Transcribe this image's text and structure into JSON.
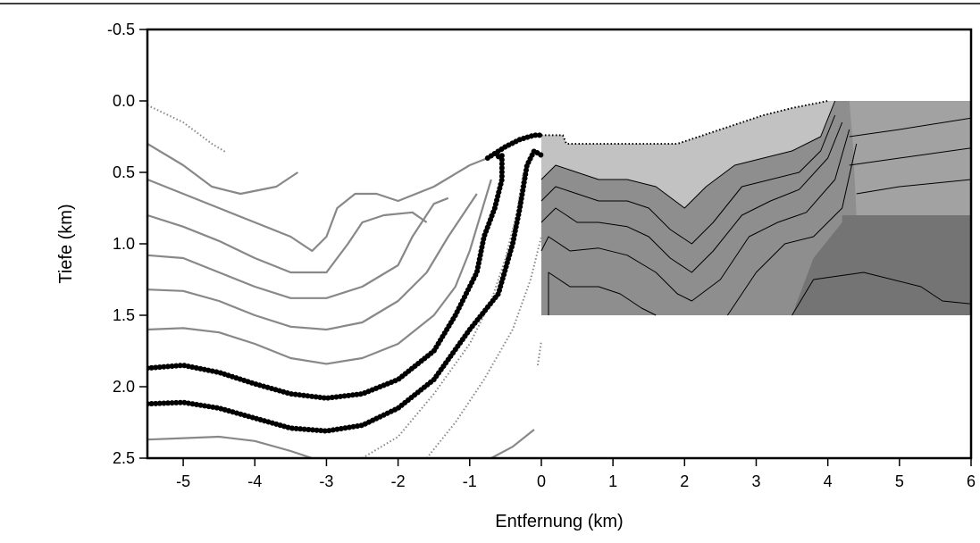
{
  "chart_data": {
    "type": "line",
    "xlabel": "Entfernung (km)",
    "ylabel": "Tiefe (km)",
    "xlim": [
      -5.5,
      6
    ],
    "ylim": [
      -0.5,
      2.5
    ],
    "y_inverted": true,
    "xticks": [
      -5,
      -4,
      -3,
      -2,
      -1,
      0,
      1,
      2,
      3,
      4,
      5,
      6
    ],
    "yticks": [
      -0.5,
      {
        "value": 0,
        "label": "0.0"
      },
      0.5,
      {
        "value": 1,
        "label": "1.0"
      },
      1.5,
      {
        "value": 2,
        "label": "2.0"
      },
      2.5
    ],
    "regions": [
      {
        "color": "#8e8e8e",
        "x": [
          0,
          0.3,
          0.35,
          0.6,
          1.9,
          2.5,
          3.1,
          3.5,
          4.0,
          6,
          6,
          0
        ],
        "values": [
          0.24,
          0.24,
          0.3,
          0.3,
          0.3,
          0.2,
          0.1,
          0.05,
          0,
          0,
          1.5,
          1.5
        ]
      },
      {
        "color": "#c2c2c2",
        "x": [
          0,
          0.3,
          0.35,
          0.6,
          1.9,
          2.5,
          3.1,
          3.5,
          4.0,
          4.1,
          3.9,
          3.5,
          3.1,
          2.7,
          2.3,
          2.0,
          1.6,
          1.2,
          0.8,
          0.5,
          0.2,
          0
        ],
        "values": [
          0.24,
          0.24,
          0.3,
          0.3,
          0.3,
          0.2,
          0.1,
          0.05,
          0,
          0,
          0.25,
          0.35,
          0.4,
          0.45,
          0.6,
          0.75,
          0.6,
          0.55,
          0.55,
          0.5,
          0.45,
          0.55
        ]
      },
      {
        "color": "#a2a2a2",
        "x": [
          4.3,
          6,
          6,
          4.4,
          4.35
        ],
        "values": [
          0,
          0,
          0.8,
          0.8,
          0.3
        ]
      },
      {
        "color": "#747474",
        "x": [
          4.2,
          6,
          6,
          3.5,
          3.8,
          4.2
        ],
        "values": [
          0.8,
          0.8,
          1.5,
          1.5,
          1.1,
          0.85
        ]
      }
    ],
    "series": [
      {
        "color": "#888888",
        "style": "dotted",
        "x": [
          -5.5,
          -5,
          -4.6,
          -4.4
        ],
        "values": [
          0.03,
          0.15,
          0.3,
          0.36
        ]
      },
      {
        "color": "#888888",
        "style": "thin",
        "x": [
          -5.5,
          -5,
          -4.6,
          -4.2,
          -3.7,
          -3.4
        ],
        "values": [
          0.3,
          0.45,
          0.6,
          0.65,
          0.6,
          0.5
        ]
      },
      {
        "color": "#888888",
        "style": "thin",
        "x": [
          -5.5,
          -5,
          -4.5,
          -4,
          -3.5,
          -3.2,
          -3,
          -2.85,
          -2.6,
          -2.3,
          -2,
          -1.5,
          -1,
          -0.75
        ],
        "values": [
          0.55,
          0.65,
          0.75,
          0.85,
          0.95,
          1.05,
          0.95,
          0.75,
          0.65,
          0.65,
          0.7,
          0.6,
          0.45,
          0.4
        ]
      },
      {
        "color": "#888888",
        "style": "thin",
        "x": [
          -5.5,
          -5,
          -4.5,
          -4,
          -3.5,
          -3,
          -2.7,
          -2.5,
          -2.2,
          -1.8,
          -1.6
        ],
        "values": [
          0.8,
          0.88,
          0.98,
          1.1,
          1.2,
          1.2,
          1.0,
          0.85,
          0.8,
          0.78,
          0.85
        ]
      },
      {
        "color": "#888888",
        "style": "thin",
        "x": [
          -5.5,
          -5,
          -4.5,
          -4,
          -3.5,
          -3,
          -2.5,
          -2,
          -1.8,
          -1.5,
          -1.3
        ],
        "values": [
          1.08,
          1.1,
          1.2,
          1.3,
          1.38,
          1.38,
          1.3,
          1.15,
          0.95,
          0.72,
          0.68
        ]
      },
      {
        "color": "#888888",
        "style": "thin",
        "x": [
          -5.5,
          -5,
          -4.5,
          -4,
          -3.5,
          -3,
          -2.5,
          -2,
          -1.6,
          -1.3,
          -1.1,
          -0.9
        ],
        "values": [
          1.32,
          1.33,
          1.4,
          1.5,
          1.58,
          1.6,
          1.55,
          1.4,
          1.2,
          0.95,
          0.8,
          0.65
        ]
      },
      {
        "color": "#888888",
        "style": "thin",
        "x": [
          -5.5,
          -5,
          -4.5,
          -4,
          -3.5,
          -3,
          -2.5,
          -2,
          -1.5,
          -1.2,
          -1,
          -0.85,
          -0.7
        ],
        "values": [
          1.6,
          1.59,
          1.62,
          1.7,
          1.8,
          1.84,
          1.8,
          1.7,
          1.5,
          1.3,
          1.05,
          0.8,
          0.55
        ]
      },
      {
        "color": "#888888",
        "style": "thin",
        "x": [
          -5.5,
          -5,
          -4.5,
          -4,
          -3.5,
          -3.2
        ],
        "values": [
          2.37,
          2.36,
          2.35,
          2.38,
          2.45,
          2.5
        ]
      },
      {
        "color": "#888888",
        "style": "dotted",
        "x": [
          -2.5,
          -2,
          -1.5,
          -1,
          -0.7,
          -0.5,
          -0.35,
          -0.25
        ],
        "values": [
          2.5,
          2.35,
          2.05,
          1.7,
          1.4,
          1.1,
          0.8,
          0.5
        ]
      },
      {
        "color": "#888888",
        "style": "dotted",
        "x": [
          -1.6,
          -1.2,
          -0.8,
          -0.4,
          -0.15,
          0
        ],
        "values": [
          2.5,
          2.25,
          1.95,
          1.6,
          1.25,
          0.95
        ]
      },
      {
        "color": "#888888",
        "style": "thin",
        "x": [
          -0.7,
          -0.4,
          -0.1
        ],
        "values": [
          2.5,
          2.42,
          2.3
        ]
      },
      {
        "color": "#888888",
        "style": "dotted",
        "x": [
          -0.05,
          0
        ],
        "values": [
          1.85,
          1.68
        ]
      },
      {
        "color": "#000000",
        "style": "thick",
        "x": [
          -5.5,
          -5,
          -4.5,
          -4,
          -3.5,
          -3,
          -2.5,
          -2,
          -1.5,
          -1.2,
          -0.9,
          -0.8,
          -0.65,
          -0.55,
          -0.55,
          -0.65
        ],
        "values": [
          1.87,
          1.85,
          1.9,
          1.98,
          2.05,
          2.08,
          2.05,
          1.95,
          1.75,
          1.5,
          1.2,
          0.95,
          0.75,
          0.55,
          0.38,
          0.4
        ]
      },
      {
        "color": "#000000",
        "style": "thick",
        "x": [
          -5.5,
          -5,
          -4.5,
          -4,
          -3.5,
          -3,
          -2.5,
          -2,
          -1.5,
          -1,
          -0.6,
          -0.4,
          -0.3,
          -0.2,
          -0.1,
          0
        ],
        "values": [
          2.12,
          2.11,
          2.15,
          2.22,
          2.29,
          2.31,
          2.27,
          2.15,
          1.95,
          1.6,
          1.35,
          1.0,
          0.75,
          0.45,
          0.35,
          0.38
        ]
      },
      {
        "color": "#000000",
        "style": "thick",
        "x": [
          -0.75,
          -0.5,
          -0.3,
          -0.1,
          0
        ],
        "values": [
          0.4,
          0.32,
          0.27,
          0.24,
          0.24
        ]
      },
      {
        "color": "#000000",
        "style": "dotted",
        "x": [
          0,
          0.3,
          0.35,
          0.6,
          1.9,
          2.5,
          3.1,
          3.5,
          4.0
        ],
        "values": [
          0.24,
          0.24,
          0.3,
          0.3,
          0.3,
          0.2,
          0.1,
          0.05,
          0
        ]
      },
      {
        "color": "#000000",
        "style": "hair",
        "x": [
          0,
          0.2,
          0.5,
          0.8,
          1.2,
          1.6,
          2,
          2.3,
          2.7,
          3.1,
          3.5,
          3.9,
          4.1
        ],
        "values": [
          0.55,
          0.45,
          0.5,
          0.55,
          0.55,
          0.6,
          0.75,
          0.6,
          0.45,
          0.4,
          0.35,
          0.25,
          0
        ]
      },
      {
        "color": "#000000",
        "style": "hair",
        "x": [
          0,
          0.2,
          0.5,
          0.8,
          1.2,
          1.5,
          1.8,
          2.1,
          2.4,
          2.8,
          3.2,
          3.6,
          3.9,
          4.1
        ],
        "values": [
          0.7,
          0.6,
          0.65,
          0.7,
          0.7,
          0.75,
          0.9,
          1.0,
          0.85,
          0.6,
          0.55,
          0.5,
          0.35,
          0.1
        ]
      },
      {
        "color": "#000000",
        "style": "hair",
        "x": [
          0,
          0.2,
          0.5,
          0.8,
          1.2,
          1.5,
          1.8,
          2.1,
          2.4,
          2.8,
          3.2,
          3.6,
          4.0,
          4.2
        ],
        "values": [
          0.85,
          0.75,
          0.85,
          0.85,
          0.88,
          0.95,
          1.1,
          1.2,
          1.05,
          0.8,
          0.7,
          0.62,
          0.4,
          0.15
        ]
      },
      {
        "color": "#000000",
        "style": "hair",
        "x": [
          0,
          0.1,
          0.4,
          0.8,
          1.2,
          1.6,
          1.9,
          2.1,
          2.5,
          2.9,
          3.3,
          3.7,
          4.1,
          4.3
        ],
        "values": [
          1.05,
          0.95,
          1.05,
          1.03,
          1.08,
          1.2,
          1.35,
          1.4,
          1.25,
          0.95,
          0.85,
          0.78,
          0.55,
          0.2
        ]
      },
      {
        "color": "#000000",
        "style": "hair",
        "x": [
          0.1,
          0.1,
          0.4,
          0.8,
          1.1,
          1.4,
          1.6
        ],
        "values": [
          1.5,
          1.2,
          1.3,
          1.3,
          1.35,
          1.45,
          1.5
        ]
      },
      {
        "color": "#000000",
        "style": "hair",
        "x": [
          2.6,
          3.0,
          3.4,
          3.8,
          4.2,
          4.4
        ],
        "values": [
          1.5,
          1.2,
          1.0,
          0.95,
          0.75,
          0.3
        ]
      },
      {
        "color": "#000000",
        "style": "hair",
        "x": [
          4.3,
          5,
          6
        ],
        "values": [
          0.25,
          0.2,
          0.12
        ]
      },
      {
        "color": "#000000",
        "style": "hair",
        "x": [
          4.3,
          5,
          6
        ],
        "values": [
          0.45,
          0.4,
          0.33
        ]
      },
      {
        "color": "#000000",
        "style": "hair",
        "x": [
          4.4,
          5,
          6
        ],
        "values": [
          0.65,
          0.6,
          0.55
        ]
      },
      {
        "color": "#000000",
        "style": "hair",
        "x": [
          3.5,
          3.8,
          4.5,
          5.3,
          5.6,
          6
        ],
        "values": [
          1.5,
          1.25,
          1.2,
          1.3,
          1.4,
          1.42
        ]
      }
    ]
  }
}
